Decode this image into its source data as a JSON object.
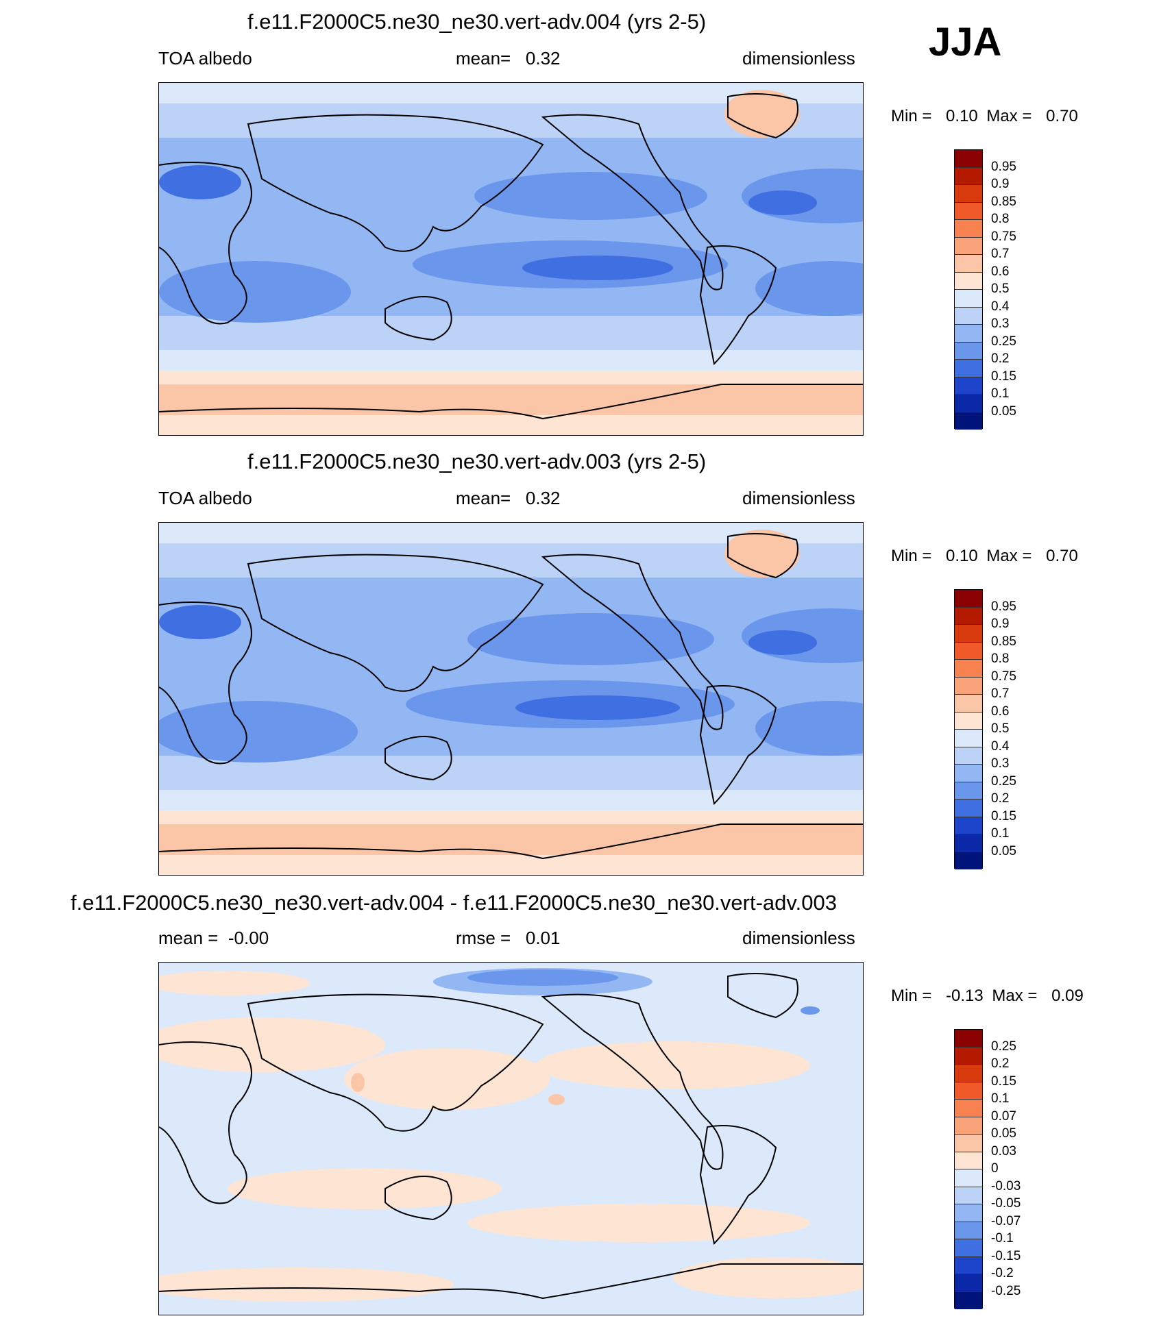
{
  "season": "JJA",
  "panels": [
    {
      "title": "f.e11.F2000C5.ne30_ne30.vert-adv.004 (yrs 2-5)",
      "left": "TOA albedo",
      "center": "mean=   0.32",
      "right": "dimensionless",
      "min_label": "Min =",
      "min_value": "0.10",
      "max_label": "Max =",
      "max_value": "0.70",
      "colorbar_labels": [
        "0.95",
        "0.9",
        "0.85",
        "0.8",
        "0.75",
        "0.7",
        "0.6",
        "0.5",
        "0.4",
        "0.3",
        "0.25",
        "0.2",
        "0.15",
        "0.1",
        "0.05"
      ]
    },
    {
      "title": "f.e11.F2000C5.ne30_ne30.vert-adv.003 (yrs 2-5)",
      "left": "TOA albedo",
      "center": "mean=   0.32",
      "right": "dimensionless",
      "min_label": "Min =",
      "min_value": "0.10",
      "max_label": "Max =",
      "max_value": "0.70",
      "colorbar_labels": [
        "0.95",
        "0.9",
        "0.85",
        "0.8",
        "0.75",
        "0.7",
        "0.6",
        "0.5",
        "0.4",
        "0.3",
        "0.25",
        "0.2",
        "0.15",
        "0.1",
        "0.05"
      ]
    },
    {
      "title": "f.e11.F2000C5.ne30_ne30.vert-adv.004 - f.e11.F2000C5.ne30_ne30.vert-adv.003",
      "left": "mean =  -0.00",
      "center": "rmse =   0.01",
      "right": "dimensionless",
      "min_label": "Min =",
      "min_value": "-0.13",
      "max_label": "Max =",
      "max_value": "0.09",
      "colorbar_labels": [
        "0.25",
        "0.2",
        "0.15",
        "0.1",
        "0.07",
        "0.05",
        "0.03",
        "0",
        "-0.03",
        "-0.05",
        "-0.07",
        "-0.1",
        "-0.15",
        "-0.2",
        "-0.25"
      ]
    }
  ],
  "colors": {
    "palette": [
      "#8b0000",
      "#b31a00",
      "#d93a0d",
      "#f05a28",
      "#f7814f",
      "#f9a37b",
      "#fbc6a8",
      "#fde4d3",
      "#dbe9fb",
      "#bcd3f7",
      "#93b7f2",
      "#6a97ec",
      "#3f6fe1",
      "#1c45cc",
      "#0a27a8",
      "#00137a"
    ]
  }
}
